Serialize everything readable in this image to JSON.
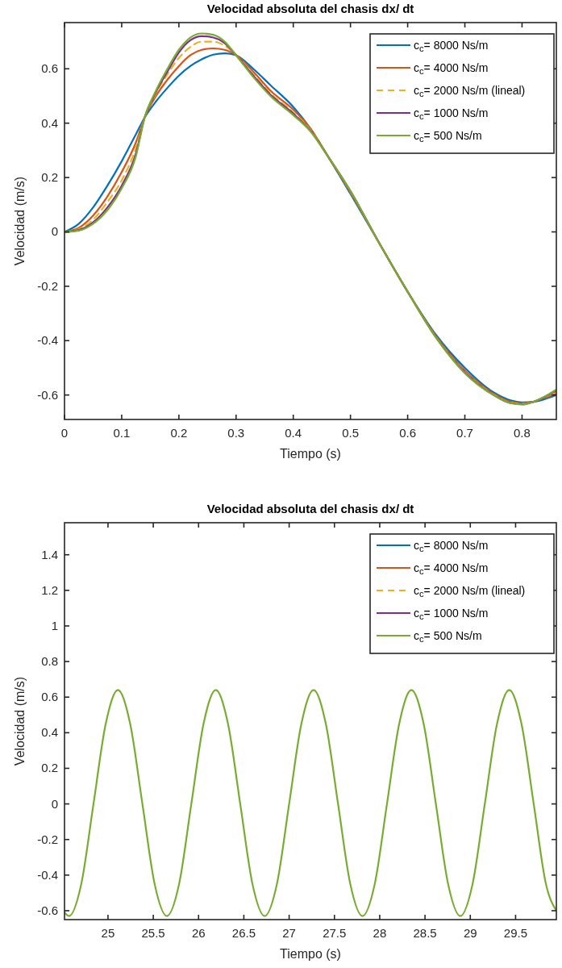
{
  "chart_data": [
    {
      "type": "line",
      "title": "Velocidad absoluta del chasis dx/ dt",
      "xlabel": "Tiempo (s)",
      "ylabel": "Velocidad (m/s)",
      "legend": "top right",
      "grid": false,
      "xlim": [
        0,
        0.86
      ],
      "ylim": [
        -0.69,
        0.77
      ],
      "xticks": [
        0,
        0.1,
        0.2,
        0.3,
        0.4,
        0.5,
        0.6,
        0.7,
        0.8
      ],
      "yticks": [
        -0.6,
        -0.4,
        -0.2,
        0,
        0.2,
        0.4,
        0.6
      ],
      "x": [
        0,
        0.025,
        0.05,
        0.075,
        0.1,
        0.125,
        0.14,
        0.16,
        0.18,
        0.2,
        0.22,
        0.24,
        0.26,
        0.28,
        0.3,
        0.33,
        0.36,
        0.4,
        0.43,
        0.46,
        0.5,
        0.55,
        0.6,
        0.65,
        0.7,
        0.75,
        0.78,
        0.8,
        0.82,
        0.84,
        0.86
      ],
      "series": [
        {
          "name": "c$_{c}$= 8000 Ns/m",
          "color": "#0072bd",
          "values": [
            0,
            0.03,
            0.09,
            0.17,
            0.26,
            0.36,
            0.42,
            0.48,
            0.53,
            0.575,
            0.61,
            0.635,
            0.652,
            0.657,
            0.65,
            0.6,
            0.54,
            0.46,
            0.38,
            0.28,
            0.14,
            -0.04,
            -0.22,
            -0.38,
            -0.5,
            -0.59,
            -0.62,
            -0.627,
            -0.625,
            -0.615,
            -0.6
          ]
        },
        {
          "name": "c$_{c}$= 4000 Ns/m",
          "color": "#d95319",
          "values": [
            0,
            0.015,
            0.06,
            0.13,
            0.22,
            0.33,
            0.42,
            0.5,
            0.56,
            0.61,
            0.65,
            0.67,
            0.675,
            0.67,
            0.65,
            0.59,
            0.52,
            0.45,
            0.38,
            0.28,
            0.145,
            -0.04,
            -0.22,
            -0.385,
            -0.51,
            -0.595,
            -0.625,
            -0.63,
            -0.625,
            -0.61,
            -0.595
          ]
        },
        {
          "name": "c$_{c}$= 2000 Ns/m (lineal)",
          "color": "#edb120",
          "line_style": "dashed",
          "values": [
            0,
            0.01,
            0.045,
            0.11,
            0.19,
            0.31,
            0.42,
            0.51,
            0.58,
            0.64,
            0.68,
            0.7,
            0.7,
            0.685,
            0.65,
            0.58,
            0.51,
            0.44,
            0.375,
            0.28,
            0.148,
            -0.04,
            -0.22,
            -0.388,
            -0.515,
            -0.598,
            -0.628,
            -0.632,
            -0.625,
            -0.607,
            -0.588
          ]
        },
        {
          "name": "c$_{c}$= 1000 Ns/m",
          "color": "#7e2f8e",
          "values": [
            0,
            0.007,
            0.035,
            0.09,
            0.17,
            0.29,
            0.42,
            0.515,
            0.59,
            0.66,
            0.705,
            0.72,
            0.715,
            0.695,
            0.65,
            0.575,
            0.505,
            0.435,
            0.372,
            0.28,
            0.15,
            -0.04,
            -0.22,
            -0.39,
            -0.518,
            -0.6,
            -0.63,
            -0.634,
            -0.625,
            -0.606,
            -0.584
          ]
        },
        {
          "name": "c$_{c}$= 500 Ns/m",
          "color": "#77ac30",
          "values": [
            0,
            0.005,
            0.03,
            0.08,
            0.16,
            0.28,
            0.42,
            0.52,
            0.6,
            0.67,
            0.715,
            0.73,
            0.725,
            0.7,
            0.65,
            0.57,
            0.5,
            0.43,
            0.37,
            0.28,
            0.15,
            -0.04,
            -0.22,
            -0.39,
            -0.52,
            -0.6,
            -0.63,
            -0.635,
            -0.625,
            -0.605,
            -0.58
          ]
        }
      ]
    },
    {
      "type": "line",
      "title": "Velocidad absoluta del chasis dx/ dt",
      "xlabel": "Tiempo (s)",
      "ylabel": "Velocidad (m/s)",
      "legend": "top right",
      "grid": false,
      "xlim": [
        24.52,
        29.95
      ],
      "ylim": [
        -0.65,
        1.58
      ],
      "xticks": [
        25,
        25.5,
        26,
        26.5,
        27,
        27.5,
        28,
        28.5,
        29,
        29.5
      ],
      "yticks": [
        -0.6,
        -0.4,
        -0.2,
        0,
        0.2,
        0.4,
        0.6,
        0.8,
        1,
        1.2,
        1.4
      ],
      "x": [
        24.52,
        24.57,
        24.705,
        24.84,
        24.975,
        25.11,
        25.245,
        25.38,
        25.515,
        25.65,
        25.785,
        25.92,
        26.055,
        26.19,
        26.325,
        26.46,
        26.595,
        26.73,
        26.865,
        27.0,
        27.135,
        27.27,
        27.405,
        27.54,
        27.675,
        27.81,
        27.945,
        28.08,
        28.215,
        28.35,
        28.485,
        28.62,
        28.755,
        28.89,
        29.025,
        29.16,
        29.295,
        29.43,
        29.565,
        29.7,
        29.835,
        29.95
      ],
      "series": [
        {
          "name": "c$_{c}$= 8000 Ns/m",
          "color": "#0072bd",
          "values": [
            null,
            null,
            null,
            null,
            null,
            null,
            null,
            null,
            null,
            null,
            null,
            null,
            null,
            null,
            null,
            null,
            null,
            null,
            null,
            null,
            null,
            null,
            null,
            null,
            null,
            null,
            null,
            null,
            null,
            null,
            null,
            null,
            null,
            null,
            null,
            null,
            null,
            null,
            null,
            null,
            null,
            null
          ]
        },
        {
          "name": "c$_{c}$= 4000 Ns/m",
          "color": "#d95319",
          "values": [
            null,
            null,
            null,
            null,
            null,
            null,
            null,
            null,
            null,
            null,
            null,
            null,
            null,
            null,
            null,
            null,
            null,
            null,
            null,
            null,
            null,
            null,
            null,
            null,
            null,
            null,
            null,
            null,
            null,
            null,
            null,
            null,
            null,
            null,
            null,
            null,
            null,
            null,
            null,
            null,
            null,
            null
          ]
        },
        {
          "name": "c$_{c}$= 2000 Ns/m (lineal)",
          "color": "#edb120",
          "line_style": "dashed",
          "values": [
            null,
            null,
            null,
            null,
            null,
            null,
            null,
            null,
            null,
            null,
            null,
            null,
            null,
            null,
            null,
            null,
            null,
            null,
            null,
            null,
            null,
            null,
            null,
            null,
            null,
            null,
            null,
            null,
            null,
            null,
            null,
            null,
            null,
            null,
            null,
            null,
            null,
            null,
            null,
            null,
            null,
            null
          ]
        },
        {
          "name": "c$_{c}$= 1000 Ns/m",
          "color": "#7e2f8e",
          "values": [
            null,
            null,
            null,
            null,
            null,
            null,
            null,
            null,
            null,
            null,
            null,
            null,
            null,
            null,
            null,
            null,
            null,
            null,
            null,
            null,
            null,
            null,
            null,
            null,
            null,
            null,
            null,
            null,
            null,
            null,
            null,
            null,
            null,
            null,
            null,
            null,
            null,
            null,
            null,
            null,
            null,
            null
          ]
        },
        {
          "name": "c$_{c}$= 500 Ns/m",
          "color": "#77ac30",
          "values": [
            -0.61,
            -0.63,
            -0.45,
            0,
            0.45,
            0.64,
            0.45,
            0,
            -0.45,
            -0.63,
            -0.45,
            0,
            0.45,
            0.64,
            0.45,
            0,
            -0.45,
            -0.63,
            -0.45,
            0,
            0.45,
            0.64,
            0.45,
            0,
            -0.45,
            -0.63,
            -0.45,
            0,
            0.45,
            0.64,
            0.45,
            0,
            -0.45,
            -0.63,
            -0.45,
            0,
            0.45,
            0.64,
            0.45,
            0,
            -0.45,
            -0.6
          ]
        }
      ]
    }
  ]
}
